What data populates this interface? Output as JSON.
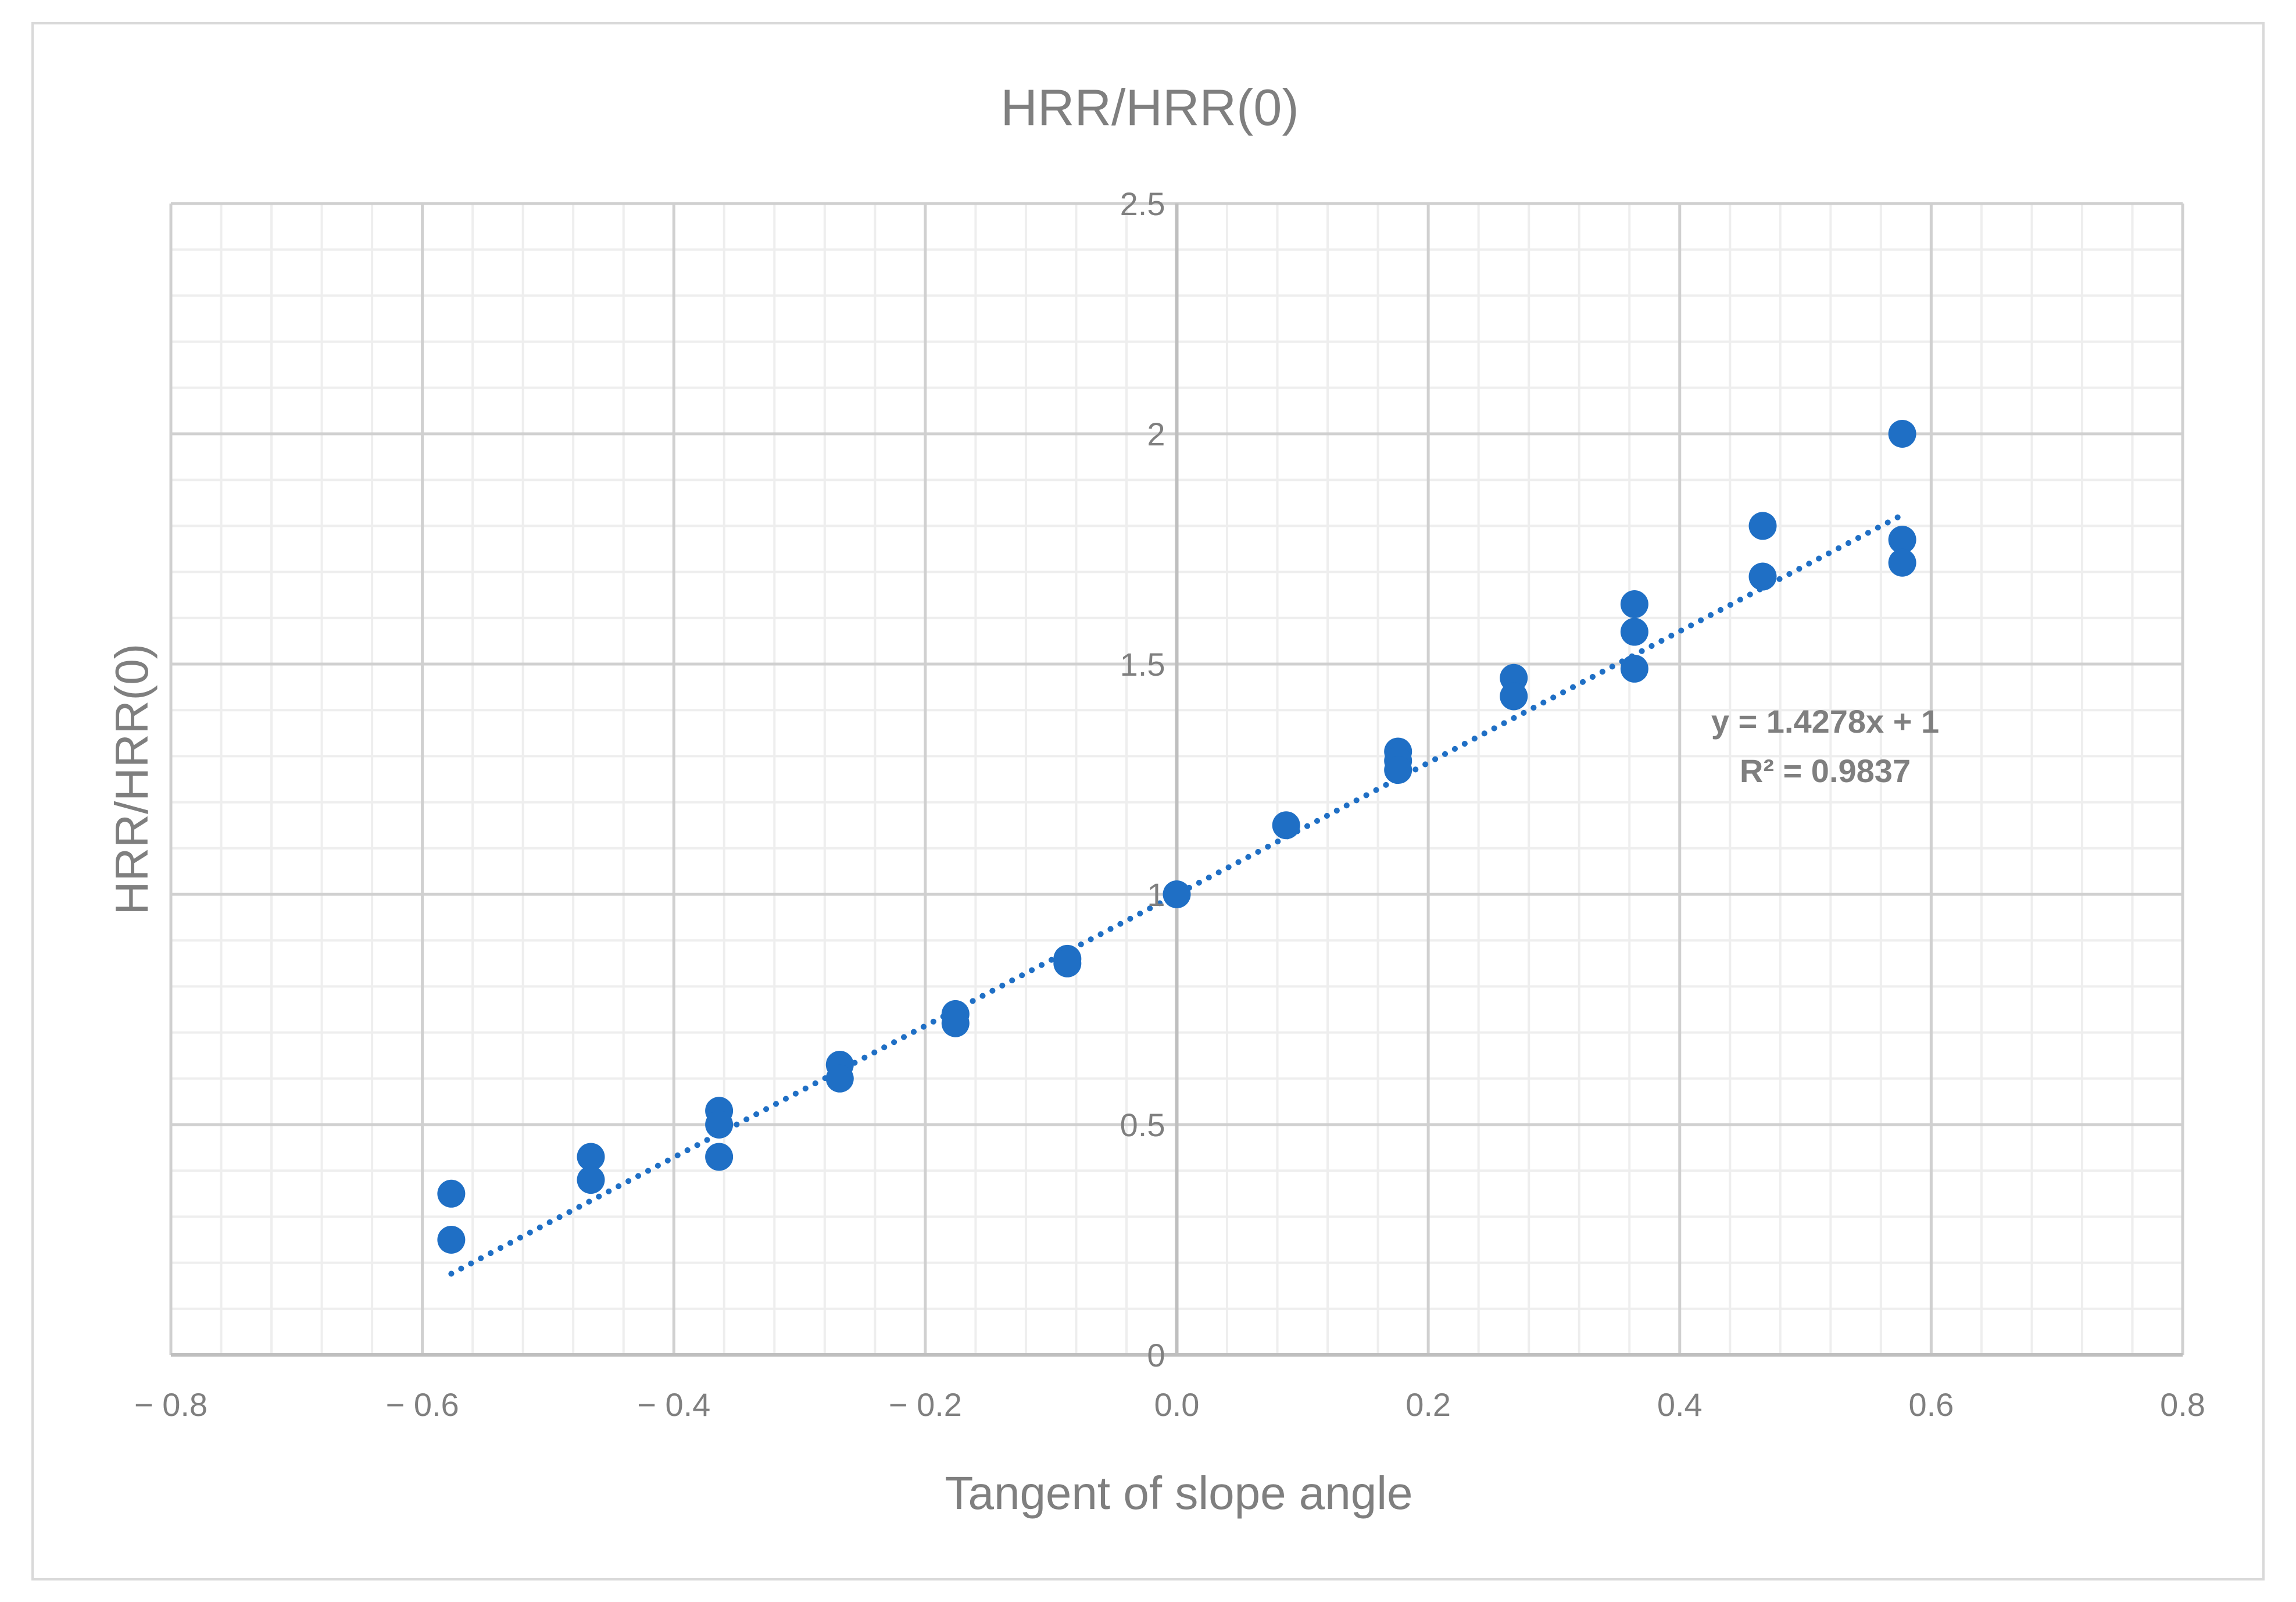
{
  "chart_data": {
    "type": "scatter",
    "title": "HRR/HRR(0)",
    "xlabel": "Tangent of slope angle",
    "ylabel": "HRR/HRR(0)",
    "xlim": [
      -0.8,
      0.8
    ],
    "ylim": [
      0,
      2.5
    ],
    "x_ticks": [
      -0.8,
      -0.6,
      -0.4,
      -0.2,
      0.0,
      0.2,
      0.4,
      0.6,
      0.8
    ],
    "x_tick_labels": [
      "− 0.8",
      "− 0.6",
      "− 0.4",
      "− 0.2",
      "0.0",
      "0.2",
      "0.4",
      "0.6",
      "0.8"
    ],
    "y_ticks": [
      0,
      0.5,
      1,
      1.5,
      2,
      2.5
    ],
    "y_tick_labels": [
      "0",
      "0.5",
      "1",
      "1.5",
      "2",
      "2.5"
    ],
    "grid": true,
    "legend": "none",
    "marker_color": "#1f6fc5",
    "trendline_color": "#1f6fc5",
    "series": [
      {
        "points": [
          {
            "x": -0.577,
            "y": 0.35
          },
          {
            "x": -0.577,
            "y": 0.25
          },
          {
            "x": -0.466,
            "y": 0.43
          },
          {
            "x": -0.466,
            "y": 0.38
          },
          {
            "x": -0.364,
            "y": 0.53
          },
          {
            "x": -0.364,
            "y": 0.5
          },
          {
            "x": -0.364,
            "y": 0.43
          },
          {
            "x": -0.268,
            "y": 0.63
          },
          {
            "x": -0.268,
            "y": 0.6
          },
          {
            "x": -0.176,
            "y": 0.74
          },
          {
            "x": -0.176,
            "y": 0.72
          },
          {
            "x": -0.087,
            "y": 0.86
          },
          {
            "x": -0.087,
            "y": 0.85
          },
          {
            "x": 0.0,
            "y": 1.0
          },
          {
            "x": 0.087,
            "y": 1.15
          },
          {
            "x": 0.176,
            "y": 1.31
          },
          {
            "x": 0.176,
            "y": 1.29
          },
          {
            "x": 0.176,
            "y": 1.27
          },
          {
            "x": 0.268,
            "y": 1.47
          },
          {
            "x": 0.268,
            "y": 1.43
          },
          {
            "x": 0.364,
            "y": 1.63
          },
          {
            "x": 0.364,
            "y": 1.57
          },
          {
            "x": 0.364,
            "y": 1.49
          },
          {
            "x": 0.466,
            "y": 1.8
          },
          {
            "x": 0.466,
            "y": 1.69
          },
          {
            "x": 0.577,
            "y": 2.0
          },
          {
            "x": 0.577,
            "y": 1.77
          },
          {
            "x": 0.577,
            "y": 1.72
          }
        ]
      }
    ],
    "trendline": {
      "type": "linear",
      "slope": 1.4278,
      "intercept": 1,
      "x_range": [
        -0.577,
        0.577
      ],
      "equation_label": "y = 1.4278x + 1",
      "r2_label": "R² = 0.9837"
    }
  }
}
